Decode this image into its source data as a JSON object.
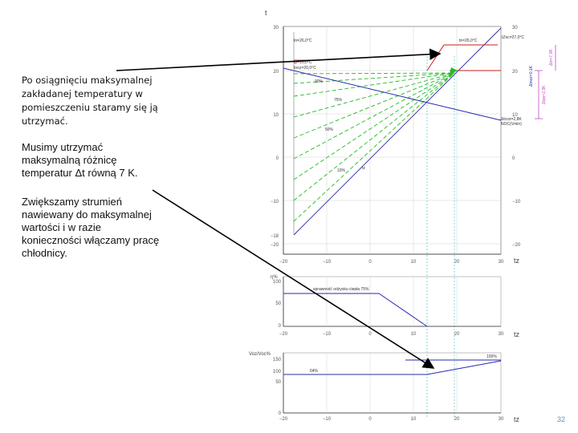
{
  "notes": {
    "reach_max": "Po osiągnięciu maksymalnej zakładanej temperatury w pomieszczeniu staramy się ją utrzymać.",
    "keep_dt": "Musimy utrzymać maksymalną różnicę temperatur Δt równą 7 K.",
    "increase_flow": "Zwiększamy strumień nawiewany do maksymalnej wartości i w razie konieczności włączamy pracę chłodnicy."
  },
  "page_number": "32",
  "top_chart": {
    "y_axis_label": "t",
    "x_axis_label": "tz",
    "x_ticks": [
      "−20",
      "−10",
      "0",
      "10",
      "20",
      "30"
    ],
    "y_ticks_left": [
      "30",
      "20",
      "10",
      "0",
      "−10",
      "−18",
      "−20"
    ],
    "y_ticks_right": [
      "30",
      "20",
      "10",
      "0",
      "−10",
      "−20"
    ],
    "labels": {
      "tn_left": "tn=26,0°C",
      "tn_right": "tn=26,0°C",
      "tzoc": "tZoc=27,0°C",
      "tp_line1": "tp=20,0°C",
      "tp_line2": "tnoz=20,0°C",
      "pct_90": "90%",
      "pct_75": "75%",
      "pct_50": "50%",
      "pct_10": "10%",
      "tz_diag": "tz",
      "dtn": "Δtn=7,0K",
      "dtnoz": "Δtnoz=0,1K",
      "dtpp": "Δtpp=2,3K",
      "anno1": "Δtcoz=2,8K",
      "anno2": "NOC(Vmin)"
    }
  },
  "mid_chart": {
    "y_axis_label": "η%",
    "x_axis_label": "tz",
    "y_ticks": [
      "100",
      "50",
      "0"
    ],
    "x_ticks": [
      "−20",
      "−10",
      "0",
      "10",
      "20",
      "30"
    ],
    "label": "sprawność odzysku ciepła 75%"
  },
  "bottom_chart": {
    "y_axis_label": "Voz/Voc%",
    "x_axis_label": "tz",
    "y_ticks": [
      "150",
      "100",
      "50",
      "0"
    ],
    "x_ticks": [
      "−20",
      "−10",
      "0",
      "10",
      "20",
      "30"
    ],
    "label_min": "64%",
    "label_max": "100%"
  },
  "colors": {
    "arrow": "#000000",
    "heating_dashes": "#22bb22",
    "supply_line": "#2a2ab0",
    "limit_line": "#c81e1e",
    "annotation": "#c04ac0",
    "marker_lines": "#6fd6d6",
    "frame": "#777777"
  }
}
